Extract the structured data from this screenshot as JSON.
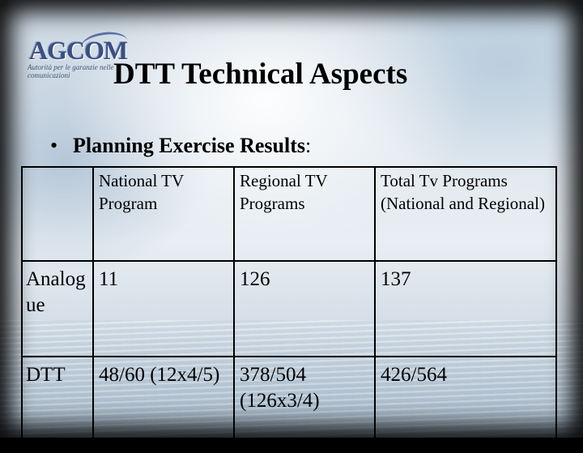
{
  "logo": {
    "mark": "AGCOM",
    "tagline": "Autorità per le garanzie nelle comunicazioni"
  },
  "title": "DTT Technical Aspects",
  "bullet": {
    "marker": "•",
    "text": "Planning Exercise Results",
    "suffix": ":"
  },
  "table": {
    "headers": [
      "",
      "National TV Program",
      "Regional TV Programs",
      "Total Tv Programs (National and Regional)"
    ],
    "rows": [
      {
        "label": "Analogue",
        "national": "11",
        "regional": "126",
        "total": "137"
      },
      {
        "label": "DTT",
        "national": "48/60 (12x4/5)",
        "regional": "378/504 (126x3/4)",
        "total": "426/564"
      }
    ]
  }
}
